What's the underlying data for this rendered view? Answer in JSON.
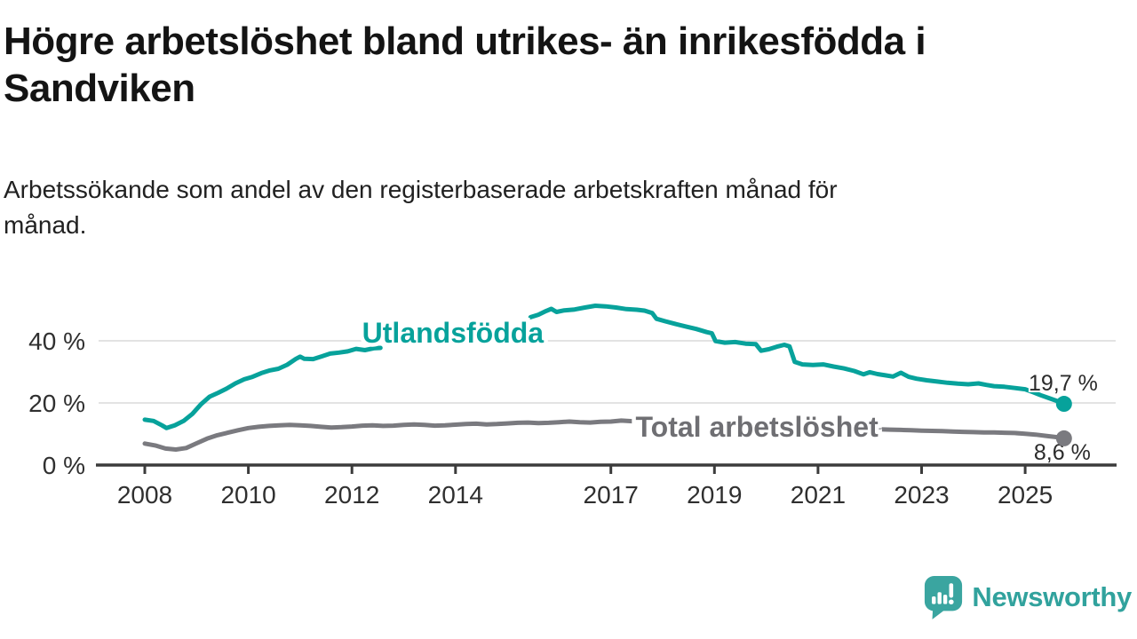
{
  "header": {
    "title_lines": [
      "Högre arbetslöshet bland utrikes- än inrikesfödda i",
      "Sandviken"
    ],
    "subtitle_lines": [
      "Arbetssökande som andel av den registerbaserade arbetskraften månad för",
      "månad."
    ]
  },
  "footer": {
    "brand": "Newsworthy"
  },
  "colors": {
    "foreign_born": "#07a29b",
    "total": "#7a7a7f",
    "total_label": "#6f6f73",
    "annotation": "#2b2b2b",
    "axis": "#3b3b3b",
    "grid": "#dadada",
    "tick_label": "#2f2f2f",
    "logo_teal": "#3aa5a0"
  },
  "chart_data": {
    "type": "line",
    "unit": "%",
    "title": "Högre arbetslöshet bland utrikes- än inrikesfödda i Sandviken",
    "xlabel": "",
    "ylabel": "Arbetssökande som andel av den registerbaserade arbetskraften",
    "x_range": [
      2007.05,
      2026.75
    ],
    "ylim": [
      0,
      55
    ],
    "grid": "horizontal",
    "legend_position": "inline-labels",
    "x_tick_years": [
      2008,
      2010,
      2012,
      2014,
      2017,
      2019,
      2021,
      2023,
      2025
    ],
    "y_ticks": [
      {
        "value": 0,
        "label": "0 %"
      },
      {
        "value": 20,
        "label": "20 %"
      },
      {
        "value": 40,
        "label": "40 %"
      }
    ],
    "series": [
      {
        "name": "Utlandsfödda",
        "color": "#07a29b",
        "end_annotation": "19,7 %",
        "end_value": 19.7,
        "line_label": {
          "text": "Utlandsfödda",
          "anchor_year": 2013.95,
          "anchor_value": 39.4
        },
        "segments": [
          [
            [
              2008.0,
              14.6
            ],
            [
              2008.17,
              14.2
            ],
            [
              2008.33,
              12.8
            ],
            [
              2008.42,
              11.9
            ],
            [
              2008.58,
              12.8
            ],
            [
              2008.75,
              14.2
            ],
            [
              2008.92,
              16.5
            ],
            [
              2009.08,
              19.5
            ],
            [
              2009.25,
              22.0
            ],
            [
              2009.42,
              23.3
            ],
            [
              2009.58,
              24.6
            ],
            [
              2009.75,
              26.3
            ],
            [
              2009.92,
              27.6
            ],
            [
              2010.08,
              28.4
            ],
            [
              2010.25,
              29.6
            ],
            [
              2010.42,
              30.5
            ],
            [
              2010.58,
              31.0
            ],
            [
              2010.75,
              32.3
            ],
            [
              2010.92,
              34.2
            ],
            [
              2011.0,
              34.9
            ],
            [
              2011.08,
              34.2
            ],
            [
              2011.25,
              34.1
            ],
            [
              2011.42,
              35.0
            ],
            [
              2011.58,
              35.9
            ],
            [
              2011.75,
              36.2
            ],
            [
              2011.92,
              36.6
            ],
            [
              2012.08,
              37.4
            ],
            [
              2012.25,
              37.0
            ],
            [
              2012.42,
              37.6
            ],
            [
              2012.55,
              37.7
            ]
          ],
          [
            [
              2015.45,
              47.6
            ],
            [
              2015.6,
              48.4
            ],
            [
              2015.75,
              49.6
            ],
            [
              2015.85,
              50.3
            ],
            [
              2015.95,
              49.3
            ],
            [
              2016.1,
              49.8
            ],
            [
              2016.3,
              50.1
            ],
            [
              2016.5,
              50.7
            ],
            [
              2016.7,
              51.3
            ],
            [
              2016.9,
              51.1
            ],
            [
              2017.1,
              50.7
            ],
            [
              2017.3,
              50.2
            ],
            [
              2017.5,
              50.0
            ],
            [
              2017.65,
              49.7
            ],
            [
              2017.8,
              48.9
            ],
            [
              2017.88,
              47.1
            ],
            [
              2018.05,
              46.3
            ],
            [
              2018.25,
              45.4
            ],
            [
              2018.45,
              44.6
            ],
            [
              2018.65,
              43.8
            ],
            [
              2018.85,
              42.8
            ],
            [
              2018.95,
              42.4
            ],
            [
              2019.02,
              39.9
            ],
            [
              2019.2,
              39.4
            ],
            [
              2019.4,
              39.6
            ],
            [
              2019.6,
              39.1
            ],
            [
              2019.8,
              38.9
            ],
            [
              2019.9,
              36.8
            ],
            [
              2020.05,
              37.3
            ],
            [
              2020.2,
              38.1
            ],
            [
              2020.35,
              38.7
            ],
            [
              2020.45,
              38.2
            ],
            [
              2020.55,
              33.2
            ],
            [
              2020.7,
              32.4
            ],
            [
              2020.9,
              32.2
            ],
            [
              2021.1,
              32.4
            ],
            [
              2021.3,
              31.7
            ],
            [
              2021.5,
              31.1
            ],
            [
              2021.7,
              30.3
            ],
            [
              2021.88,
              29.2
            ],
            [
              2022.0,
              29.9
            ],
            [
              2022.15,
              29.3
            ],
            [
              2022.3,
              28.9
            ],
            [
              2022.45,
              28.5
            ],
            [
              2022.6,
              29.7
            ],
            [
              2022.75,
              28.4
            ],
            [
              2022.9,
              27.8
            ],
            [
              2023.1,
              27.3
            ],
            [
              2023.3,
              26.9
            ],
            [
              2023.5,
              26.5
            ],
            [
              2023.7,
              26.2
            ],
            [
              2023.9,
              26.0
            ],
            [
              2024.1,
              26.3
            ],
            [
              2024.25,
              25.8
            ],
            [
              2024.4,
              25.4
            ],
            [
              2024.6,
              25.2
            ],
            [
              2024.8,
              24.8
            ],
            [
              2025.0,
              24.4
            ],
            [
              2025.15,
              23.5
            ],
            [
              2025.3,
              22.5
            ],
            [
              2025.45,
              21.6
            ],
            [
              2025.6,
              20.7
            ],
            [
              2025.75,
              19.7
            ]
          ]
        ]
      },
      {
        "name": "Total arbetslöshet",
        "color": "#7a7a7f",
        "label_color": "#6f6f73",
        "end_annotation": "8,6 %",
        "end_value": 8.6,
        "line_label": {
          "text": "Total arbetslöshet",
          "anchor_year": 2019.82,
          "anchor_value": 9.1
        },
        "segments": [
          [
            [
              2008.0,
              6.9
            ],
            [
              2008.2,
              6.3
            ],
            [
              2008.4,
              5.3
            ],
            [
              2008.6,
              5.0
            ],
            [
              2008.8,
              5.5
            ],
            [
              2009.0,
              7.0
            ],
            [
              2009.2,
              8.5
            ],
            [
              2009.4,
              9.6
            ],
            [
              2009.6,
              10.4
            ],
            [
              2009.8,
              11.2
            ],
            [
              2010.0,
              11.9
            ],
            [
              2010.2,
              12.3
            ],
            [
              2010.4,
              12.6
            ],
            [
              2010.6,
              12.8
            ],
            [
              2010.8,
              12.9
            ],
            [
              2011.0,
              12.8
            ],
            [
              2011.2,
              12.6
            ],
            [
              2011.4,
              12.3
            ],
            [
              2011.6,
              12.1
            ],
            [
              2011.8,
              12.2
            ],
            [
              2012.0,
              12.4
            ],
            [
              2012.2,
              12.7
            ],
            [
              2012.4,
              12.8
            ],
            [
              2012.6,
              12.6
            ],
            [
              2012.8,
              12.7
            ],
            [
              2013.0,
              12.9
            ],
            [
              2013.2,
              13.1
            ],
            [
              2013.4,
              12.9
            ],
            [
              2013.6,
              12.7
            ],
            [
              2013.8,
              12.8
            ],
            [
              2014.0,
              13.0
            ],
            [
              2014.2,
              13.2
            ],
            [
              2014.4,
              13.3
            ],
            [
              2014.6,
              13.1
            ],
            [
              2014.8,
              13.2
            ],
            [
              2015.0,
              13.4
            ],
            [
              2015.2,
              13.6
            ],
            [
              2015.4,
              13.7
            ],
            [
              2015.6,
              13.5
            ],
            [
              2015.8,
              13.6
            ],
            [
              2016.0,
              13.8
            ],
            [
              2016.2,
              14.0
            ],
            [
              2016.4,
              13.8
            ],
            [
              2016.6,
              13.7
            ],
            [
              2016.8,
              13.9
            ],
            [
              2017.0,
              14.0
            ],
            [
              2017.2,
              14.3
            ],
            [
              2017.45,
              14.1
            ]
          ],
          [
            [
              2022.2,
              11.5
            ],
            [
              2022.4,
              11.4
            ],
            [
              2022.6,
              11.3
            ],
            [
              2022.8,
              11.2
            ],
            [
              2023.0,
              11.1
            ],
            [
              2023.2,
              11.0
            ],
            [
              2023.4,
              10.9
            ],
            [
              2023.6,
              10.8
            ],
            [
              2023.8,
              10.7
            ],
            [
              2024.0,
              10.6
            ],
            [
              2024.2,
              10.5
            ],
            [
              2024.4,
              10.5
            ],
            [
              2024.6,
              10.4
            ],
            [
              2024.8,
              10.3
            ],
            [
              2025.0,
              10.1
            ],
            [
              2025.2,
              9.8
            ],
            [
              2025.4,
              9.4
            ],
            [
              2025.6,
              9.0
            ],
            [
              2025.75,
              8.6
            ]
          ]
        ]
      }
    ]
  }
}
